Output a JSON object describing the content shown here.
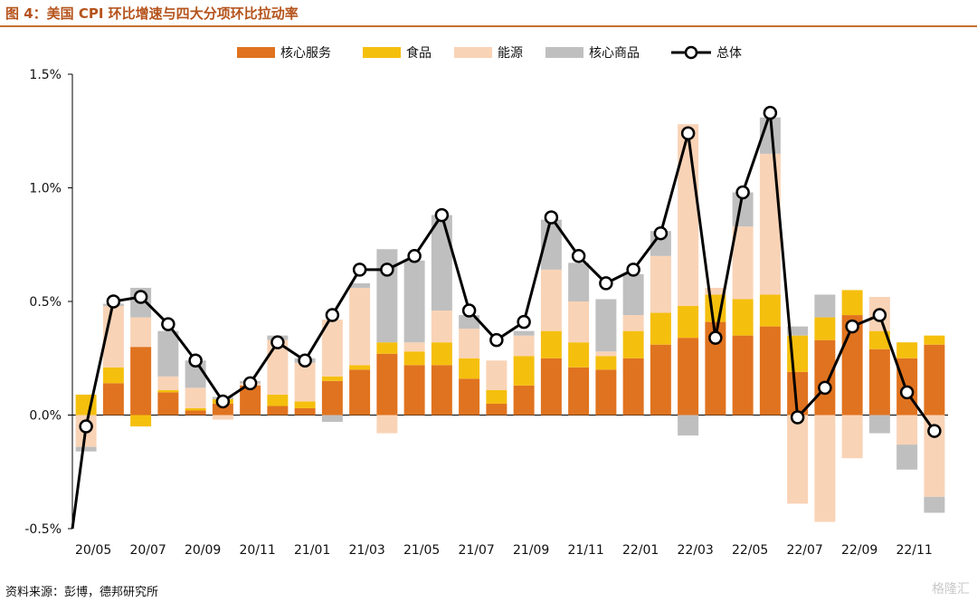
{
  "figure": {
    "title": "图 4：美国 CPI 环比增速与四大分项环比拉动率",
    "source": "资料来源：彭博，德邦研究所",
    "watermark": "格隆汇"
  },
  "colors": {
    "core_services": "#e0731f",
    "food": "#f5bf0e",
    "energy": "#f9d3b6",
    "core_goods": "#bfbfbf",
    "total_line": "#000000",
    "title": "#b5531b"
  },
  "chart_data": {
    "type": "bar",
    "stacked": true,
    "ylim": [
      -0.5,
      1.5
    ],
    "yticks": [
      "-0.5%",
      "0.0%",
      "0.5%",
      "1.0%",
      "1.5%"
    ],
    "ytick_values": [
      -0.5,
      0.0,
      0.5,
      1.0,
      1.5
    ],
    "x_tick_labels": [
      "20/05",
      "20/07",
      "20/09",
      "20/11",
      "21/01",
      "21/03",
      "21/05",
      "21/07",
      "21/09",
      "21/11",
      "22/01",
      "22/03",
      "22/05",
      "22/07",
      "22/09",
      "22/11"
    ],
    "categories": [
      "20/05",
      "20/06",
      "20/07",
      "20/08",
      "20/09",
      "20/10",
      "20/11",
      "20/12",
      "21/01",
      "21/02",
      "21/03",
      "21/04",
      "21/05",
      "21/06",
      "21/07",
      "21/08",
      "21/09",
      "21/10",
      "21/11",
      "21/12",
      "22/01",
      "22/02",
      "22/03",
      "22/04",
      "22/05",
      "22/06",
      "22/07",
      "22/08",
      "22/09",
      "22/10",
      "22/11",
      "22/12"
    ],
    "legend_position": "top",
    "series": [
      {
        "name": "核心服务",
        "key": "core_services",
        "kind": "bar",
        "values": [
          0.0,
          0.14,
          0.3,
          0.1,
          0.02,
          0.05,
          0.13,
          0.04,
          0.03,
          0.15,
          0.2,
          0.27,
          0.22,
          0.22,
          0.16,
          0.05,
          0.13,
          0.25,
          0.21,
          0.2,
          0.25,
          0.31,
          0.34,
          0.41,
          0.35,
          0.39,
          0.19,
          0.33,
          0.44,
          0.29,
          0.25,
          0.31
        ]
      },
      {
        "name": "食品",
        "key": "food",
        "kind": "bar",
        "values": [
          0.09,
          0.07,
          -0.05,
          0.01,
          0.01,
          0.02,
          0.0,
          0.05,
          0.03,
          0.02,
          0.02,
          0.05,
          0.06,
          0.1,
          0.09,
          0.06,
          0.13,
          0.12,
          0.11,
          0.06,
          0.12,
          0.14,
          0.14,
          0.12,
          0.16,
          0.14,
          0.16,
          0.1,
          0.11,
          0.08,
          0.07,
          0.04
        ]
      },
      {
        "name": "能源",
        "key": "energy",
        "kind": "bar",
        "values": [
          -0.14,
          0.27,
          0.13,
          0.06,
          0.09,
          -0.02,
          0.01,
          0.24,
          0.17,
          0.25,
          0.34,
          -0.08,
          0.04,
          0.14,
          0.13,
          0.13,
          0.09,
          0.27,
          0.18,
          0.02,
          0.07,
          0.25,
          0.8,
          0.03,
          0.32,
          0.62,
          -0.39,
          -0.47,
          -0.19,
          0.15,
          -0.13,
          -0.36
        ]
      },
      {
        "name": "核心商品",
        "key": "core_goods",
        "kind": "bar",
        "values": [
          -0.02,
          0.01,
          0.13,
          0.2,
          0.12,
          0.01,
          0.01,
          0.02,
          0.02,
          -0.03,
          0.02,
          0.41,
          0.36,
          0.42,
          0.06,
          0.0,
          0.02,
          0.22,
          0.17,
          0.23,
          0.18,
          0.11,
          -0.09,
          0.0,
          0.15,
          0.16,
          0.04,
          0.1,
          0.0,
          -0.08,
          -0.11,
          -0.07
        ]
      },
      {
        "name": "总体",
        "key": "total",
        "kind": "line",
        "values": [
          -0.05,
          0.5,
          0.52,
          0.4,
          0.24,
          0.06,
          0.14,
          0.32,
          0.24,
          0.44,
          0.64,
          0.64,
          0.7,
          0.88,
          0.46,
          0.33,
          0.41,
          0.87,
          0.7,
          0.58,
          0.64,
          0.8,
          1.24,
          0.34,
          0.98,
          1.33,
          -0.01,
          0.12,
          0.39,
          0.44,
          0.1,
          -0.07
        ]
      }
    ]
  }
}
